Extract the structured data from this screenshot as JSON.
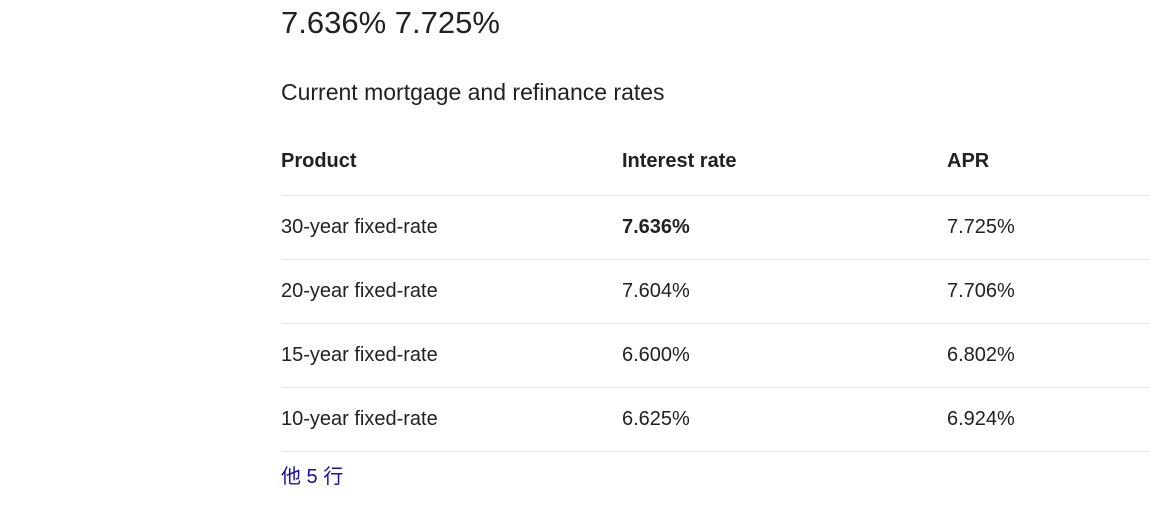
{
  "answer": {
    "headline": "7.636% 7.725%"
  },
  "section": {
    "title": "Current mortgage and refinance rates"
  },
  "table": {
    "headers": {
      "product": "Product",
      "interest_rate": "Interest rate",
      "apr": "APR"
    },
    "rows": [
      {
        "product": "30-year fixed-rate",
        "interest_rate": "7.636%",
        "apr": "7.725%"
      },
      {
        "product": "20-year fixed-rate",
        "interest_rate": "7.604%",
        "apr": "7.706%"
      },
      {
        "product": "15-year fixed-rate",
        "interest_rate": "6.600%",
        "apr": "6.802%"
      },
      {
        "product": "10-year fixed-rate",
        "interest_rate": "6.625%",
        "apr": "6.924%"
      }
    ]
  },
  "footer": {
    "more_rows_link": "他 5 行"
  },
  "colors": {
    "text": "#202124",
    "link": "#1a0dab",
    "divider": "#e4e4e4",
    "background": "#ffffff"
  }
}
